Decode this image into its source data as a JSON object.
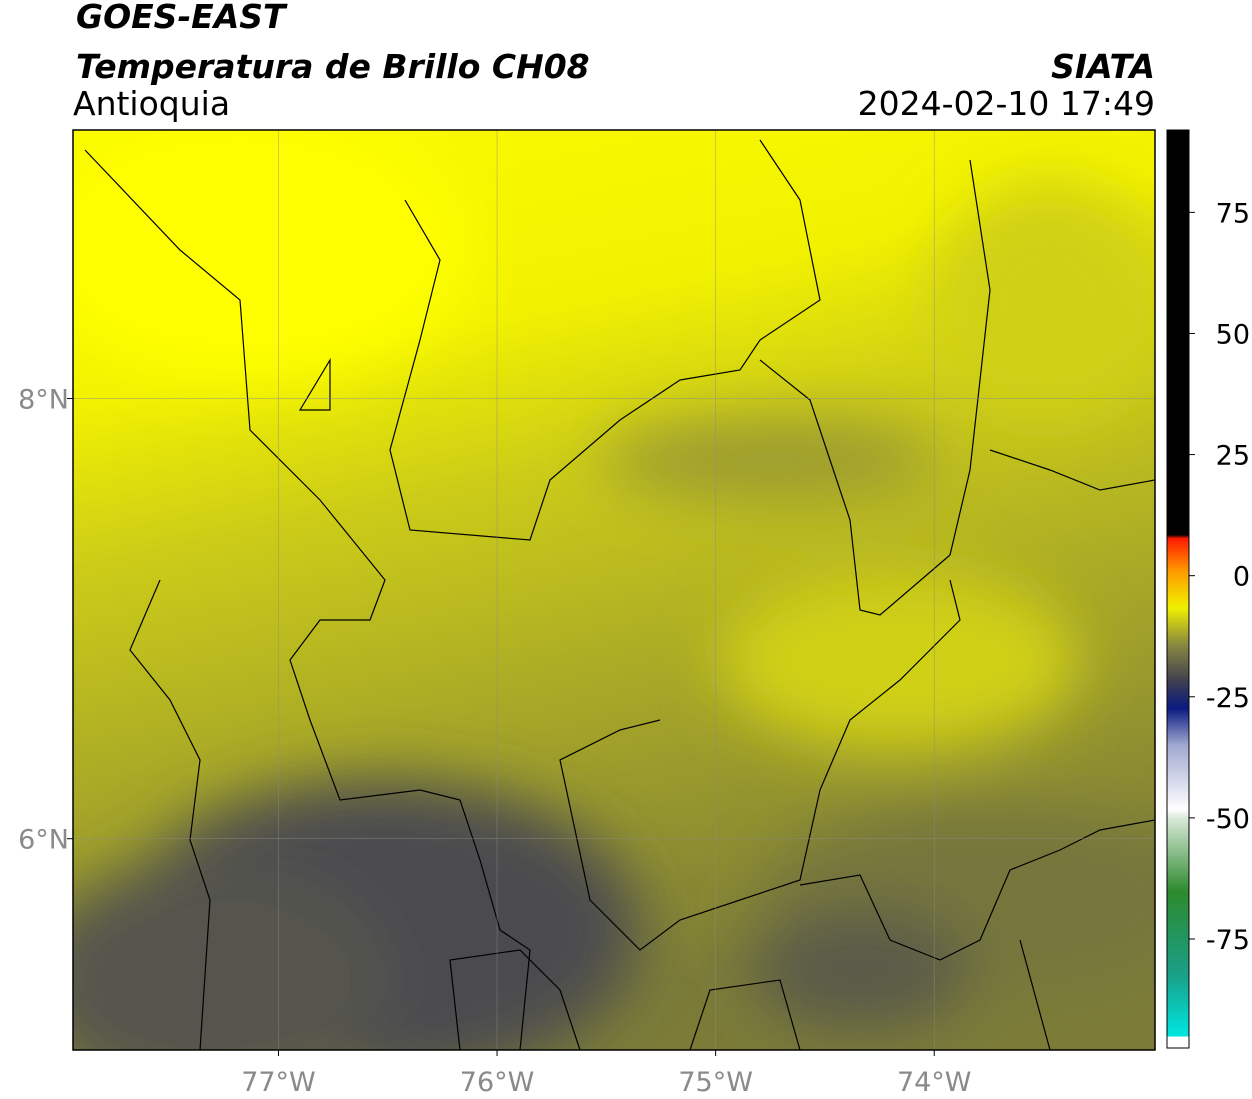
{
  "header": {
    "satellite": "GOES-EAST",
    "product": "Temperatura de Brillo CH08",
    "region": "Antioquia",
    "source": "SIATA",
    "datetime": "2024-02-10 17:49"
  },
  "map": {
    "xlim": [
      -77.94,
      -72.99
    ],
    "ylim": [
      5.04,
      9.22
    ],
    "xticks": [
      {
        "value": -77,
        "label": "77°W"
      },
      {
        "value": -76,
        "label": "76°W"
      },
      {
        "value": -75,
        "label": "75°W"
      },
      {
        "value": -74,
        "label": "74°W"
      }
    ],
    "yticks": [
      {
        "value": 8,
        "label": "8°N"
      },
      {
        "value": 6,
        "label": "6°N"
      }
    ]
  },
  "colorbar": {
    "lim": [
      -97.5,
      92
    ],
    "ticks": [
      75,
      50,
      25,
      0,
      -25,
      -50,
      -75
    ]
  }
}
